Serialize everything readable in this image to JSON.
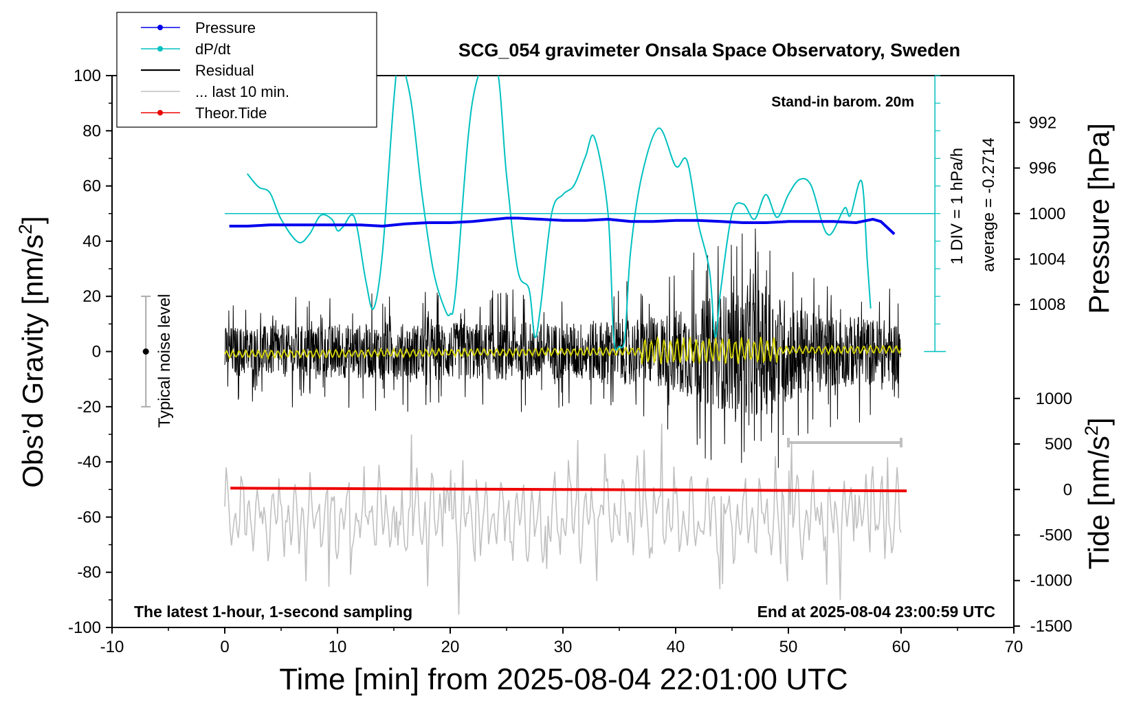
{
  "chart_data": {
    "type": "line",
    "title": "SCG_054 gravimeter Onsala Space Observatory, Sweden",
    "xlabel": "Time [min] from 2025-08-04 22:01:00 UTC",
    "ylabel_left": "Obs’d Gravity [nm/s",
    "ylabel_left_sup": "2",
    "ylabel_left_end": "]",
    "ylabel_right_pressure": "Pressure [hPa]",
    "ylabel_right_tide": "Tide [nm/s",
    "ylabel_right_tide_sup": "2",
    "ylabel_right_tide_end": "]",
    "xlim": [
      -10,
      70
    ],
    "ylim_left": [
      -100,
      100
    ],
    "ylim_pressure": [
      988,
      1012
    ],
    "ylim_tide": [
      -1500,
      1000
    ],
    "x_ticks": [
      -10,
      0,
      10,
      20,
      30,
      40,
      50,
      60,
      70
    ],
    "y_ticks_left": [
      -100,
      -80,
      -60,
      -40,
      -20,
      0,
      20,
      40,
      60,
      80,
      100
    ],
    "pressure_ticks": [
      992,
      996,
      1000,
      1004,
      1008
    ],
    "tide_ticks": [
      -1500,
      -1000,
      -500,
      0,
      500,
      1000
    ],
    "annotations": {
      "stand_in": "Stand-in barom. 20m",
      "bottom_left": "The latest 1-hour, 1-second sampling",
      "bottom_right": "End at 2025-08-04 23:00:59 UTC",
      "div_label": "1 DIV = 1 hPa/h",
      "average_label": "average = -0.2714",
      "noise_label": "Typical noise level"
    },
    "legend": {
      "position": "top-left",
      "entries": [
        {
          "label": "Pressure",
          "color": "#0000ee"
        },
        {
          "label": "dP/dt",
          "color": "#00c0c0"
        },
        {
          "label": "Residual",
          "color": "#000000"
        },
        {
          "label": "... last 10 min.",
          "color": "#c0c0c0"
        },
        {
          "label": "Theor.Tide",
          "color": "#ee0000"
        }
      ]
    },
    "series": [
      {
        "name": "Pressure",
        "color": "#0000ee",
        "axis": "pressure_hPa",
        "x": [
          0.4,
          2,
          4,
          6,
          8,
          10,
          12,
          14,
          16,
          18,
          20,
          22,
          24,
          25,
          26,
          28,
          30,
          32,
          34,
          36,
          38,
          40,
          42,
          44,
          46,
          48,
          50,
          52,
          54,
          56,
          57.5,
          58.2,
          59.4
        ],
        "y": [
          1001.1,
          1001.1,
          1001.0,
          1001.0,
          1001.0,
          1001.0,
          1001.0,
          1001.1,
          1000.9,
          1000.8,
          1000.8,
          1000.7,
          1000.5,
          1000.4,
          1000.4,
          1000.5,
          1000.6,
          1000.6,
          1000.5,
          1000.7,
          1000.7,
          1000.6,
          1000.6,
          1000.7,
          1000.8,
          1000.8,
          1000.7,
          1000.7,
          1000.7,
          1000.8,
          1000.5,
          1000.7,
          1001.8
        ]
      },
      {
        "name": "dP/dt",
        "color": "#00c0c0",
        "axis": "dpdt_div",
        "x": [
          2,
          3,
          4,
          5,
          6.5,
          7.5,
          8.5,
          9.5,
          10,
          10.5,
          11.5,
          12.5,
          13.2,
          14,
          15,
          15.5,
          16.5,
          17.5,
          18.5,
          19.5,
          20,
          20.5,
          22,
          24,
          25,
          26,
          27,
          27.5,
          28,
          29,
          30,
          31,
          32,
          32.8,
          34,
          34.5,
          35,
          35.5,
          36,
          37,
          38.5,
          40,
          41,
          42,
          43,
          43.5,
          44,
          45,
          46,
          47,
          48,
          49,
          50,
          51,
          52,
          53,
          53.5,
          54,
          55,
          55.5,
          56.5,
          57,
          57.3
        ],
        "y": [
          -2.1,
          -1.4,
          -1.1,
          0.3,
          1.5,
          1.1,
          0.1,
          0.3,
          0.9,
          0.7,
          0.2,
          3.5,
          5.0,
          2.0,
          -6.0,
          -8.0,
          -6.0,
          -1.0,
          3.0,
          5.0,
          5.3,
          4.0,
          -6.0,
          -8.0,
          -2.0,
          3.0,
          4.0,
          6.5,
          5.0,
          0.0,
          -1.0,
          -1.5,
          -3.0,
          -4.0,
          0.0,
          6.5,
          7.0,
          6.5,
          2.0,
          -2.0,
          -4.5,
          -2.5,
          -2.8,
          0.5,
          3.0,
          6.5,
          4.0,
          0.0,
          -0.5,
          0.3,
          -1.0,
          0.2,
          -1.0,
          -1.8,
          -1.5,
          0.5,
          1.1,
          0.9,
          -0.3,
          0.1,
          -1.7,
          2.5,
          5.0
        ]
      },
      {
        "name": "Residual",
        "color": "#000000",
        "axis": "gravity",
        "x_range": [
          0,
          60
        ],
        "amplitude_envelope": [
          {
            "x": 0,
            "amp": 13
          },
          {
            "x": 10,
            "amp": 14
          },
          {
            "x": 20,
            "amp": 15
          },
          {
            "x": 30,
            "amp": 15
          },
          {
            "x": 38,
            "amp": 18
          },
          {
            "x": 44,
            "amp": 30
          },
          {
            "x": 48,
            "amp": 34
          },
          {
            "x": 52,
            "amp": 20
          },
          {
            "x": 60,
            "amp": 16
          }
        ]
      },
      {
        "name": "... last 10 min.",
        "color": "#c0c0c0",
        "axis": "gravity",
        "baseline": -60,
        "x_range": [
          0,
          60
        ],
        "bracket_x": [
          50,
          60
        ],
        "bracket_y": -33
      },
      {
        "name": "Theor.Tide",
        "color": "#ee0000",
        "axis": "tide",
        "x": [
          0.5,
          10,
          20,
          30,
          40,
          50,
          60.5
        ],
        "y": [
          15,
          10,
          5,
          0,
          -5,
          -10,
          -15
        ]
      },
      {
        "name": "smoothed",
        "color": "#d4d400",
        "axis": "gravity",
        "x_range": [
          0,
          60
        ]
      }
    ],
    "noise_bar": {
      "x": -7,
      "y_low": -20,
      "y_high": 20,
      "center": 0
    },
    "dpdt_zero_line_pressure": 1000,
    "dpdt_scale_div_per_hPa": 12
  }
}
